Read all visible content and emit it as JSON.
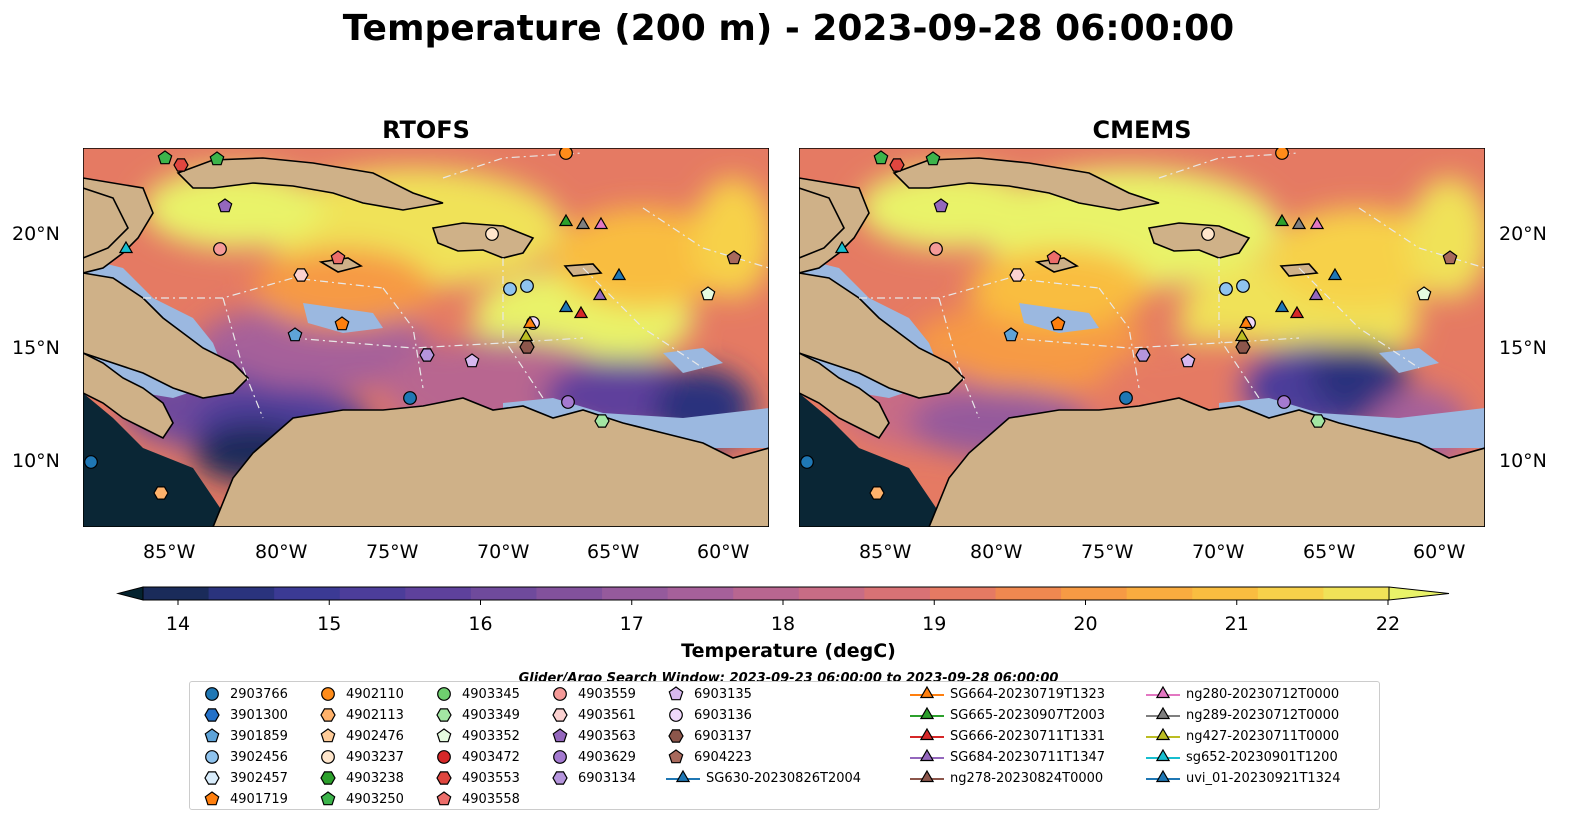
{
  "title": "Temperature (200 m) - 2023-09-28 06:00:00",
  "panels": [
    {
      "title": "RTOFS",
      "variant": "rtofs"
    },
    {
      "title": "CMEMS",
      "variant": "cmems"
    }
  ],
  "lat_labels": [
    "20°N",
    "15°N",
    "10°N"
  ],
  "lon_labels": [
    "85°W",
    "80°W",
    "75°W",
    "70°W",
    "65°W",
    "60°W"
  ],
  "colorbar": {
    "label": "Temperature (degC)",
    "ticks": [
      "14",
      "15",
      "16",
      "17",
      "18",
      "19",
      "20",
      "21",
      "22"
    ],
    "range": [
      14,
      22
    ],
    "extend": "both",
    "colors": [
      "#04232f",
      "#1a2b5a",
      "#2a337d",
      "#3b3a94",
      "#4c3d9a",
      "#5e419c",
      "#6f4a9c",
      "#82519c",
      "#955a9c",
      "#a6609a",
      "#b86690",
      "#c86c85",
      "#d87275",
      "#e57a63",
      "#ef8850",
      "#f69a44",
      "#f9ac3f",
      "#f9bd40",
      "#f7d14a",
      "#f0e258",
      "#e9f369"
    ]
  },
  "search_window": "Glider/Argo Search Window: 2023-09-23 06:00:00 to 2023-09-28 06:00:00",
  "legend": [
    {
      "label": "2903766",
      "marker": "circle",
      "color": "#1f77b4"
    },
    {
      "label": "3901300",
      "marker": "hexagon",
      "color": "#2471c8"
    },
    {
      "label": "3901859",
      "marker": "pentagon",
      "color": "#5ea3d8"
    },
    {
      "label": "3902456",
      "marker": "circle",
      "color": "#8fc3ee"
    },
    {
      "label": "3902457",
      "marker": "hexagon",
      "color": "#d8ecfb"
    },
    {
      "label": "4901719",
      "marker": "pentagon",
      "color": "#ff7f0e"
    },
    {
      "label": "4902110",
      "marker": "circle",
      "color": "#ff8c1a"
    },
    {
      "label": "4902113",
      "marker": "hexagon",
      "color": "#ffb26b"
    },
    {
      "label": "4902476",
      "marker": "pentagon",
      "color": "#ffcc99"
    },
    {
      "label": "4903237",
      "marker": "circle",
      "color": "#ffe6cc"
    },
    {
      "label": "4903238",
      "marker": "hexagon",
      "color": "#2ca02c"
    },
    {
      "label": "4903250",
      "marker": "pentagon",
      "color": "#3cb44b"
    },
    {
      "label": "4903345",
      "marker": "circle",
      "color": "#6fcf6f"
    },
    {
      "label": "4903349",
      "marker": "hexagon",
      "color": "#a3e6a3"
    },
    {
      "label": "4903352",
      "marker": "pentagon",
      "color": "#e6fbe0"
    },
    {
      "label": "4903472",
      "marker": "circle",
      "color": "#d62728"
    },
    {
      "label": "4903553",
      "marker": "hexagon",
      "color": "#e0463f"
    },
    {
      "label": "4903558",
      "marker": "pentagon",
      "color": "#ec6d6a"
    },
    {
      "label": "4903559",
      "marker": "circle",
      "color": "#f59a98"
    },
    {
      "label": "4903561",
      "marker": "hexagon",
      "color": "#fbd1d0"
    },
    {
      "label": "4903563",
      "marker": "pentagon",
      "color": "#9467bd"
    },
    {
      "label": "4903629",
      "marker": "circle",
      "color": "#a47ad0"
    },
    {
      "label": "6903134",
      "marker": "hexagon",
      "color": "#b595dc"
    },
    {
      "label": "6903135",
      "marker": "pentagon",
      "color": "#d7b8ef"
    },
    {
      "label": "6903136",
      "marker": "circle",
      "color": "#efd8fb"
    },
    {
      "label": "6903137",
      "marker": "hexagon",
      "color": "#8c564b"
    },
    {
      "label": "6904223",
      "marker": "pentagon",
      "color": "#a8695c"
    },
    {
      "label": "SG630-20230826T2004",
      "marker": "triangle",
      "color": "#1f77b4"
    },
    {
      "label": "SG664-20230719T1323",
      "marker": "triangle",
      "color": "#ff7f0e"
    },
    {
      "label": "SG665-20230907T2003",
      "marker": "triangle",
      "color": "#2ca02c"
    },
    {
      "label": "SG666-20230711T1331",
      "marker": "triangle",
      "color": "#d62728"
    },
    {
      "label": "SG684-20230711T1347",
      "marker": "triangle",
      "color": "#9467bd"
    },
    {
      "label": "ng278-20230824T0000",
      "marker": "triangle",
      "color": "#8c564b"
    },
    {
      "label": "ng280-20230712T0000",
      "marker": "triangle",
      "color": "#e377c2"
    },
    {
      "label": "ng289-20230712T0000",
      "marker": "triangle",
      "color": "#7f7f7f"
    },
    {
      "label": "ng427-20230711T0000",
      "marker": "triangle",
      "color": "#bcbd22"
    },
    {
      "label": "sg652-20230901T1200",
      "marker": "triangle",
      "color": "#17becf"
    },
    {
      "label": "uvi_01-20230921T1324",
      "marker": "triangle",
      "color": "#1f77b4"
    }
  ],
  "colors": {
    "land": "#cfb188",
    "shelf": "#9bb8e0",
    "coast": "#000000"
  }
}
